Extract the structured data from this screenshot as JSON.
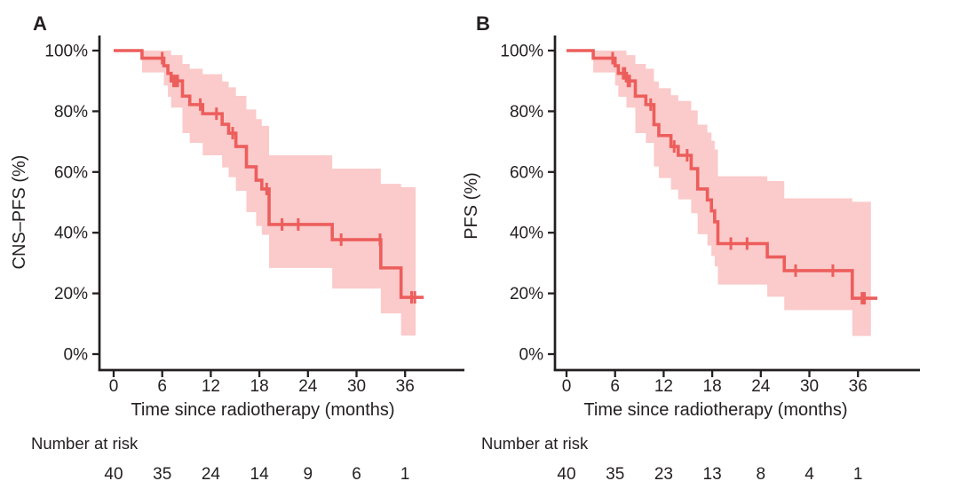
{
  "figure": {
    "background": "#ffffff",
    "text_color": "#231f20",
    "axis_color": "#231f20",
    "curve_color": "#ec5e5c",
    "band_color": "#fbcaca"
  },
  "chart_data": [
    {
      "type": "line",
      "subtype": "kaplan-meier-step",
      "panel_label": "A",
      "ylabel": "CNS–PFS (%)",
      "xlabel": "Time since radiotherapy (months)",
      "x_ticks": [
        0,
        6,
        12,
        18,
        24,
        30,
        36
      ],
      "y_ticks_pct": [
        100,
        80,
        60,
        40,
        20,
        0
      ],
      "y_tick_labels": [
        "100%",
        "80%",
        "60%",
        "40%",
        "20%",
        "0%"
      ],
      "xlim": [
        0,
        39
      ],
      "ylim": [
        0,
        100
      ],
      "start": [
        0,
        100
      ],
      "line_end_time": 38.3,
      "band_end_time": 37.3,
      "steps": [
        [
          3.5,
          97.5,
          92.8,
          100
        ],
        [
          6.2,
          95.0,
          88.5,
          100
        ],
        [
          6.7,
          92.5,
          84.8,
          100
        ],
        [
          7.1,
          90.0,
          81.2,
          98.5
        ],
        [
          8.5,
          85.0,
          72.8,
          95.6
        ],
        [
          9.4,
          82.2,
          69.6,
          94.0
        ],
        [
          11.0,
          79.2,
          65.5,
          92.2
        ],
        [
          13.4,
          75.7,
          61.5,
          89.8
        ],
        [
          14.2,
          72.8,
          58.3,
          87.9
        ],
        [
          15.1,
          68.4,
          53.8,
          85.1
        ],
        [
          16.4,
          61.7,
          46.8,
          80.6
        ],
        [
          17.6,
          57.3,
          42.2,
          77.4
        ],
        [
          18.3,
          54.4,
          39.3,
          75.2
        ],
        [
          19.2,
          42.7,
          28.4,
          65.5
        ],
        [
          27.0,
          37.7,
          21.6,
          61.1
        ],
        [
          33.0,
          28.4,
          13.4,
          56.1
        ],
        [
          35.5,
          18.7,
          6.1,
          55.0
        ]
      ],
      "censor_marks": [
        [
          6.0,
          97.5
        ],
        [
          7.4,
          90.0
        ],
        [
          7.6,
          90.0
        ],
        [
          7.9,
          90.0
        ],
        [
          10.7,
          82.2
        ],
        [
          12.7,
          79.2
        ],
        [
          14.7,
          72.8
        ],
        [
          18.9,
          54.4
        ],
        [
          20.8,
          42.7
        ],
        [
          22.8,
          42.7
        ],
        [
          28.1,
          37.7
        ],
        [
          32.9,
          37.7
        ],
        [
          36.8,
          18.7
        ],
        [
          37.2,
          18.7
        ]
      ],
      "risk_header": "Number at risk",
      "risk_counts": [
        40,
        35,
        24,
        14,
        9,
        6,
        1
      ]
    },
    {
      "type": "line",
      "subtype": "kaplan-meier-step",
      "panel_label": "B",
      "ylabel": "PFS (%)",
      "xlabel": "Time since radiotherapy (months)",
      "x_ticks": [
        0,
        6,
        12,
        18,
        24,
        30,
        36
      ],
      "y_ticks_pct": [
        100,
        80,
        60,
        40,
        20,
        0
      ],
      "y_tick_labels": [
        "100%",
        "80%",
        "60%",
        "40%",
        "20%",
        "0%"
      ],
      "xlim": [
        0,
        39
      ],
      "ylim": [
        0,
        100
      ],
      "start": [
        0,
        100
      ],
      "line_end_time": 38.4,
      "band_end_time": 37.6,
      "steps": [
        [
          3.3,
          97.5,
          92.8,
          100
        ],
        [
          6.0,
          95.0,
          88.5,
          100
        ],
        [
          6.4,
          92.5,
          84.8,
          100
        ],
        [
          7.4,
          90.0,
          81.2,
          98.5
        ],
        [
          8.5,
          85.0,
          72.8,
          95.6
        ],
        [
          9.8,
          82.2,
          69.6,
          94.0
        ],
        [
          10.8,
          75.6,
          61.8,
          89.8
        ],
        [
          11.4,
          72.0,
          58.0,
          87.6
        ],
        [
          12.9,
          68.4,
          54.2,
          85.3
        ],
        [
          13.8,
          65.5,
          51.0,
          83.4
        ],
        [
          15.4,
          61.1,
          46.4,
          80.3
        ],
        [
          16.2,
          54.4,
          39.5,
          75.6
        ],
        [
          17.4,
          50.8,
          35.8,
          73.0
        ],
        [
          17.9,
          47.2,
          32.3,
          70.3
        ],
        [
          18.3,
          43.6,
          28.9,
          67.4
        ],
        [
          18.7,
          36.4,
          22.9,
          58.6
        ],
        [
          24.8,
          32.0,
          18.9,
          57.0
        ],
        [
          26.9,
          27.5,
          14.5,
          51.3
        ],
        [
          35.3,
          18.4,
          6.0,
          50.2
        ]
      ],
      "censor_marks": [
        [
          5.7,
          97.5
        ],
        [
          7.0,
          92.5
        ],
        [
          7.2,
          92.5
        ],
        [
          7.6,
          90.0
        ],
        [
          7.8,
          90.0
        ],
        [
          10.4,
          82.2
        ],
        [
          13.3,
          68.4
        ],
        [
          14.9,
          65.5
        ],
        [
          20.3,
          36.4
        ],
        [
          22.3,
          36.4
        ],
        [
          28.3,
          27.5
        ],
        [
          32.9,
          27.5
        ],
        [
          36.5,
          18.4
        ],
        [
          36.8,
          18.4
        ]
      ],
      "risk_header": "Number at risk",
      "risk_counts": [
        40,
        35,
        23,
        13,
        8,
        4,
        1
      ]
    }
  ]
}
